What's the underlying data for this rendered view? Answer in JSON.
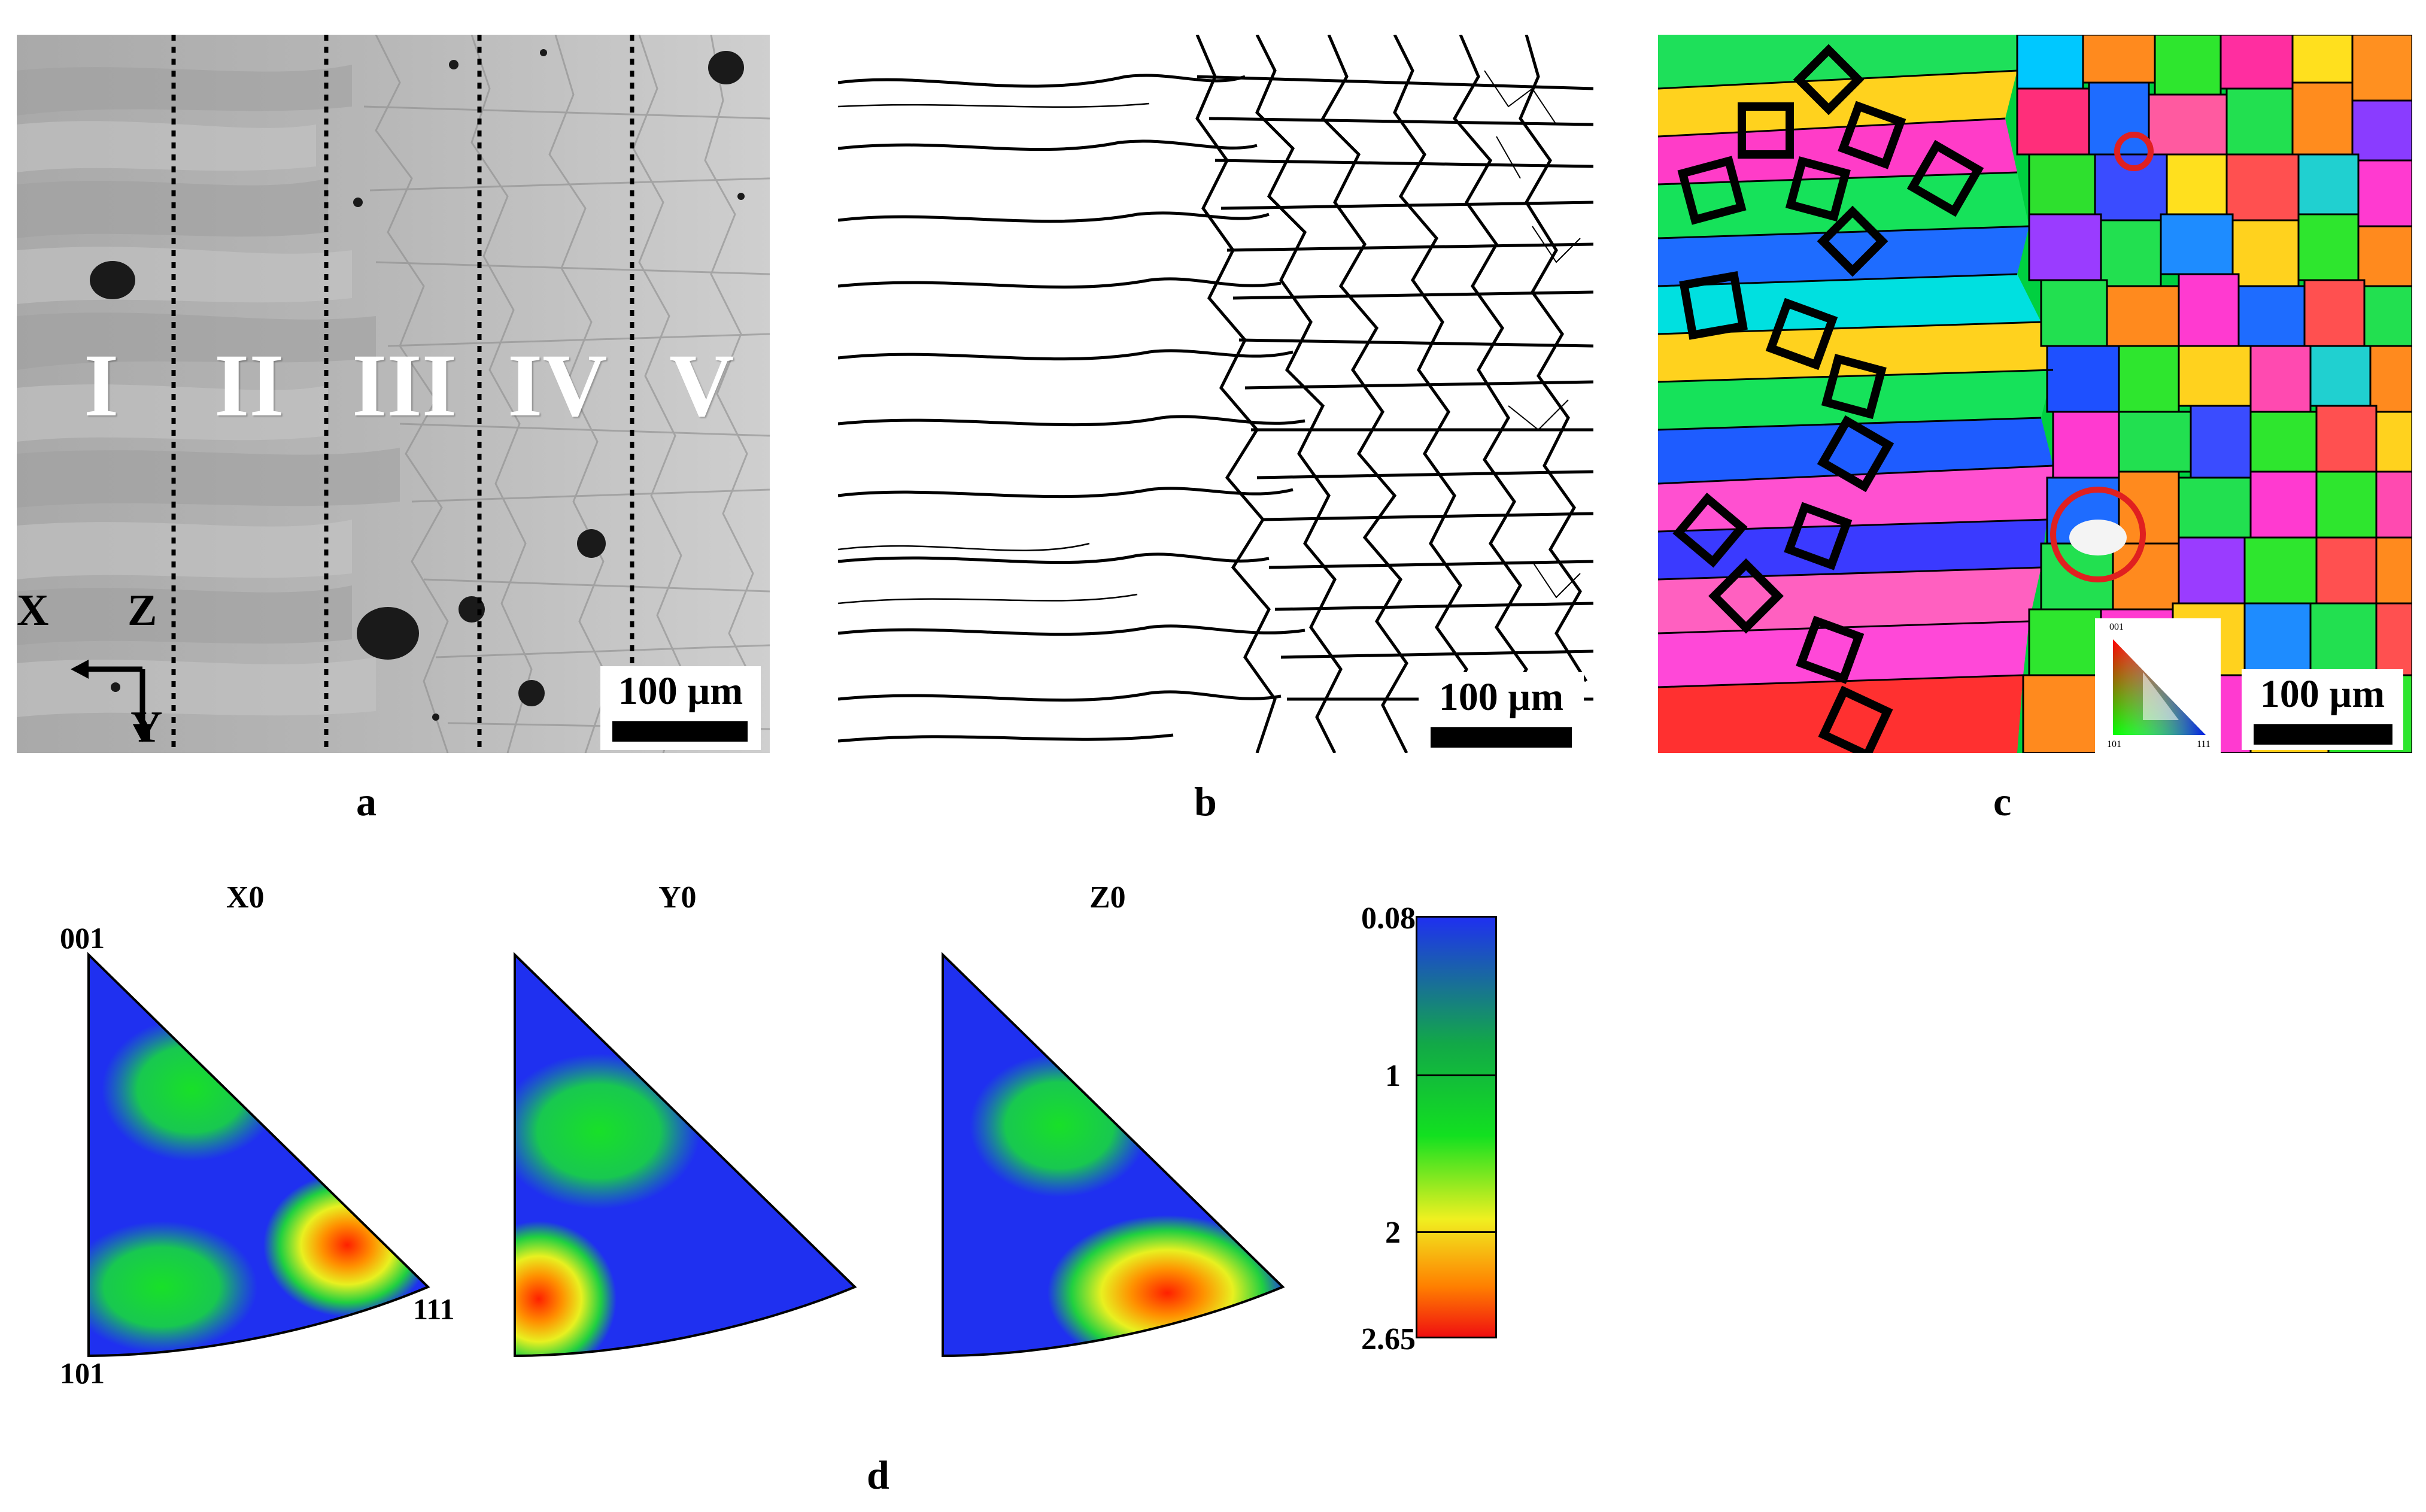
{
  "figure": {
    "panel_a": {
      "zones": [
        "I",
        "II",
        "III",
        "IV",
        "V"
      ],
      "axis_labels": {
        "x": "X",
        "z": "Z",
        "y": "Y"
      },
      "scale_bar": "100 µm",
      "letter": "a"
    },
    "panel_b": {
      "scale_bar": "100 µm",
      "letter": "b"
    },
    "panel_c": {
      "scale_bar": "100 µm",
      "letter": "c",
      "legend_labels": [
        "001",
        "101",
        "111"
      ],
      "colors": {
        "highlight_circle": "#e02020"
      }
    },
    "panel_d": {
      "letter": "d",
      "ipf_titles": [
        "X0",
        "Y0",
        "Z0"
      ],
      "corners": {
        "top": "001",
        "bottom_left": "101",
        "bottom_right": "111"
      },
      "colorbar": {
        "ticks": [
          "0.08",
          "1",
          "2",
          "2.65"
        ],
        "min": 0.08,
        "max": 2.65,
        "colors": [
          "#1f30f0",
          "#12a848",
          "#12e020",
          "#f0f020",
          "#ff8000",
          "#f01010"
        ]
      }
    }
  }
}
